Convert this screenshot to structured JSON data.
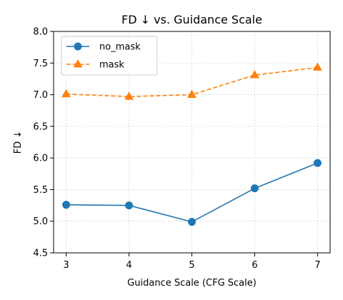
{
  "chart_data": {
    "type": "line",
    "title": "FD ↓  vs. Guidance Scale",
    "xlabel": "Guidance Scale (CFG Scale)",
    "ylabel": "FD ↓",
    "x": [
      3,
      4,
      5,
      6,
      7
    ],
    "xlim": [
      2.8,
      7.2
    ],
    "ylim": [
      4.5,
      8.0
    ],
    "xticks": [
      "3",
      "4",
      "5",
      "6",
      "7"
    ],
    "yticks": [
      "4.5",
      "5.0",
      "5.5",
      "6.0",
      "6.5",
      "7.0",
      "7.5",
      "8.0"
    ],
    "grid": true,
    "legend_position": "top-left",
    "series": [
      {
        "name": "no_mask",
        "values": [
          5.26,
          5.25,
          4.99,
          5.52,
          5.92
        ],
        "color": "#1f77b4",
        "marker": "circle",
        "linestyle": "solid"
      },
      {
        "name": "mask",
        "values": [
          7.01,
          6.97,
          7.0,
          7.31,
          7.43
        ],
        "color": "#ff7f0e",
        "marker": "triangle",
        "linestyle": "dashed"
      }
    ]
  }
}
